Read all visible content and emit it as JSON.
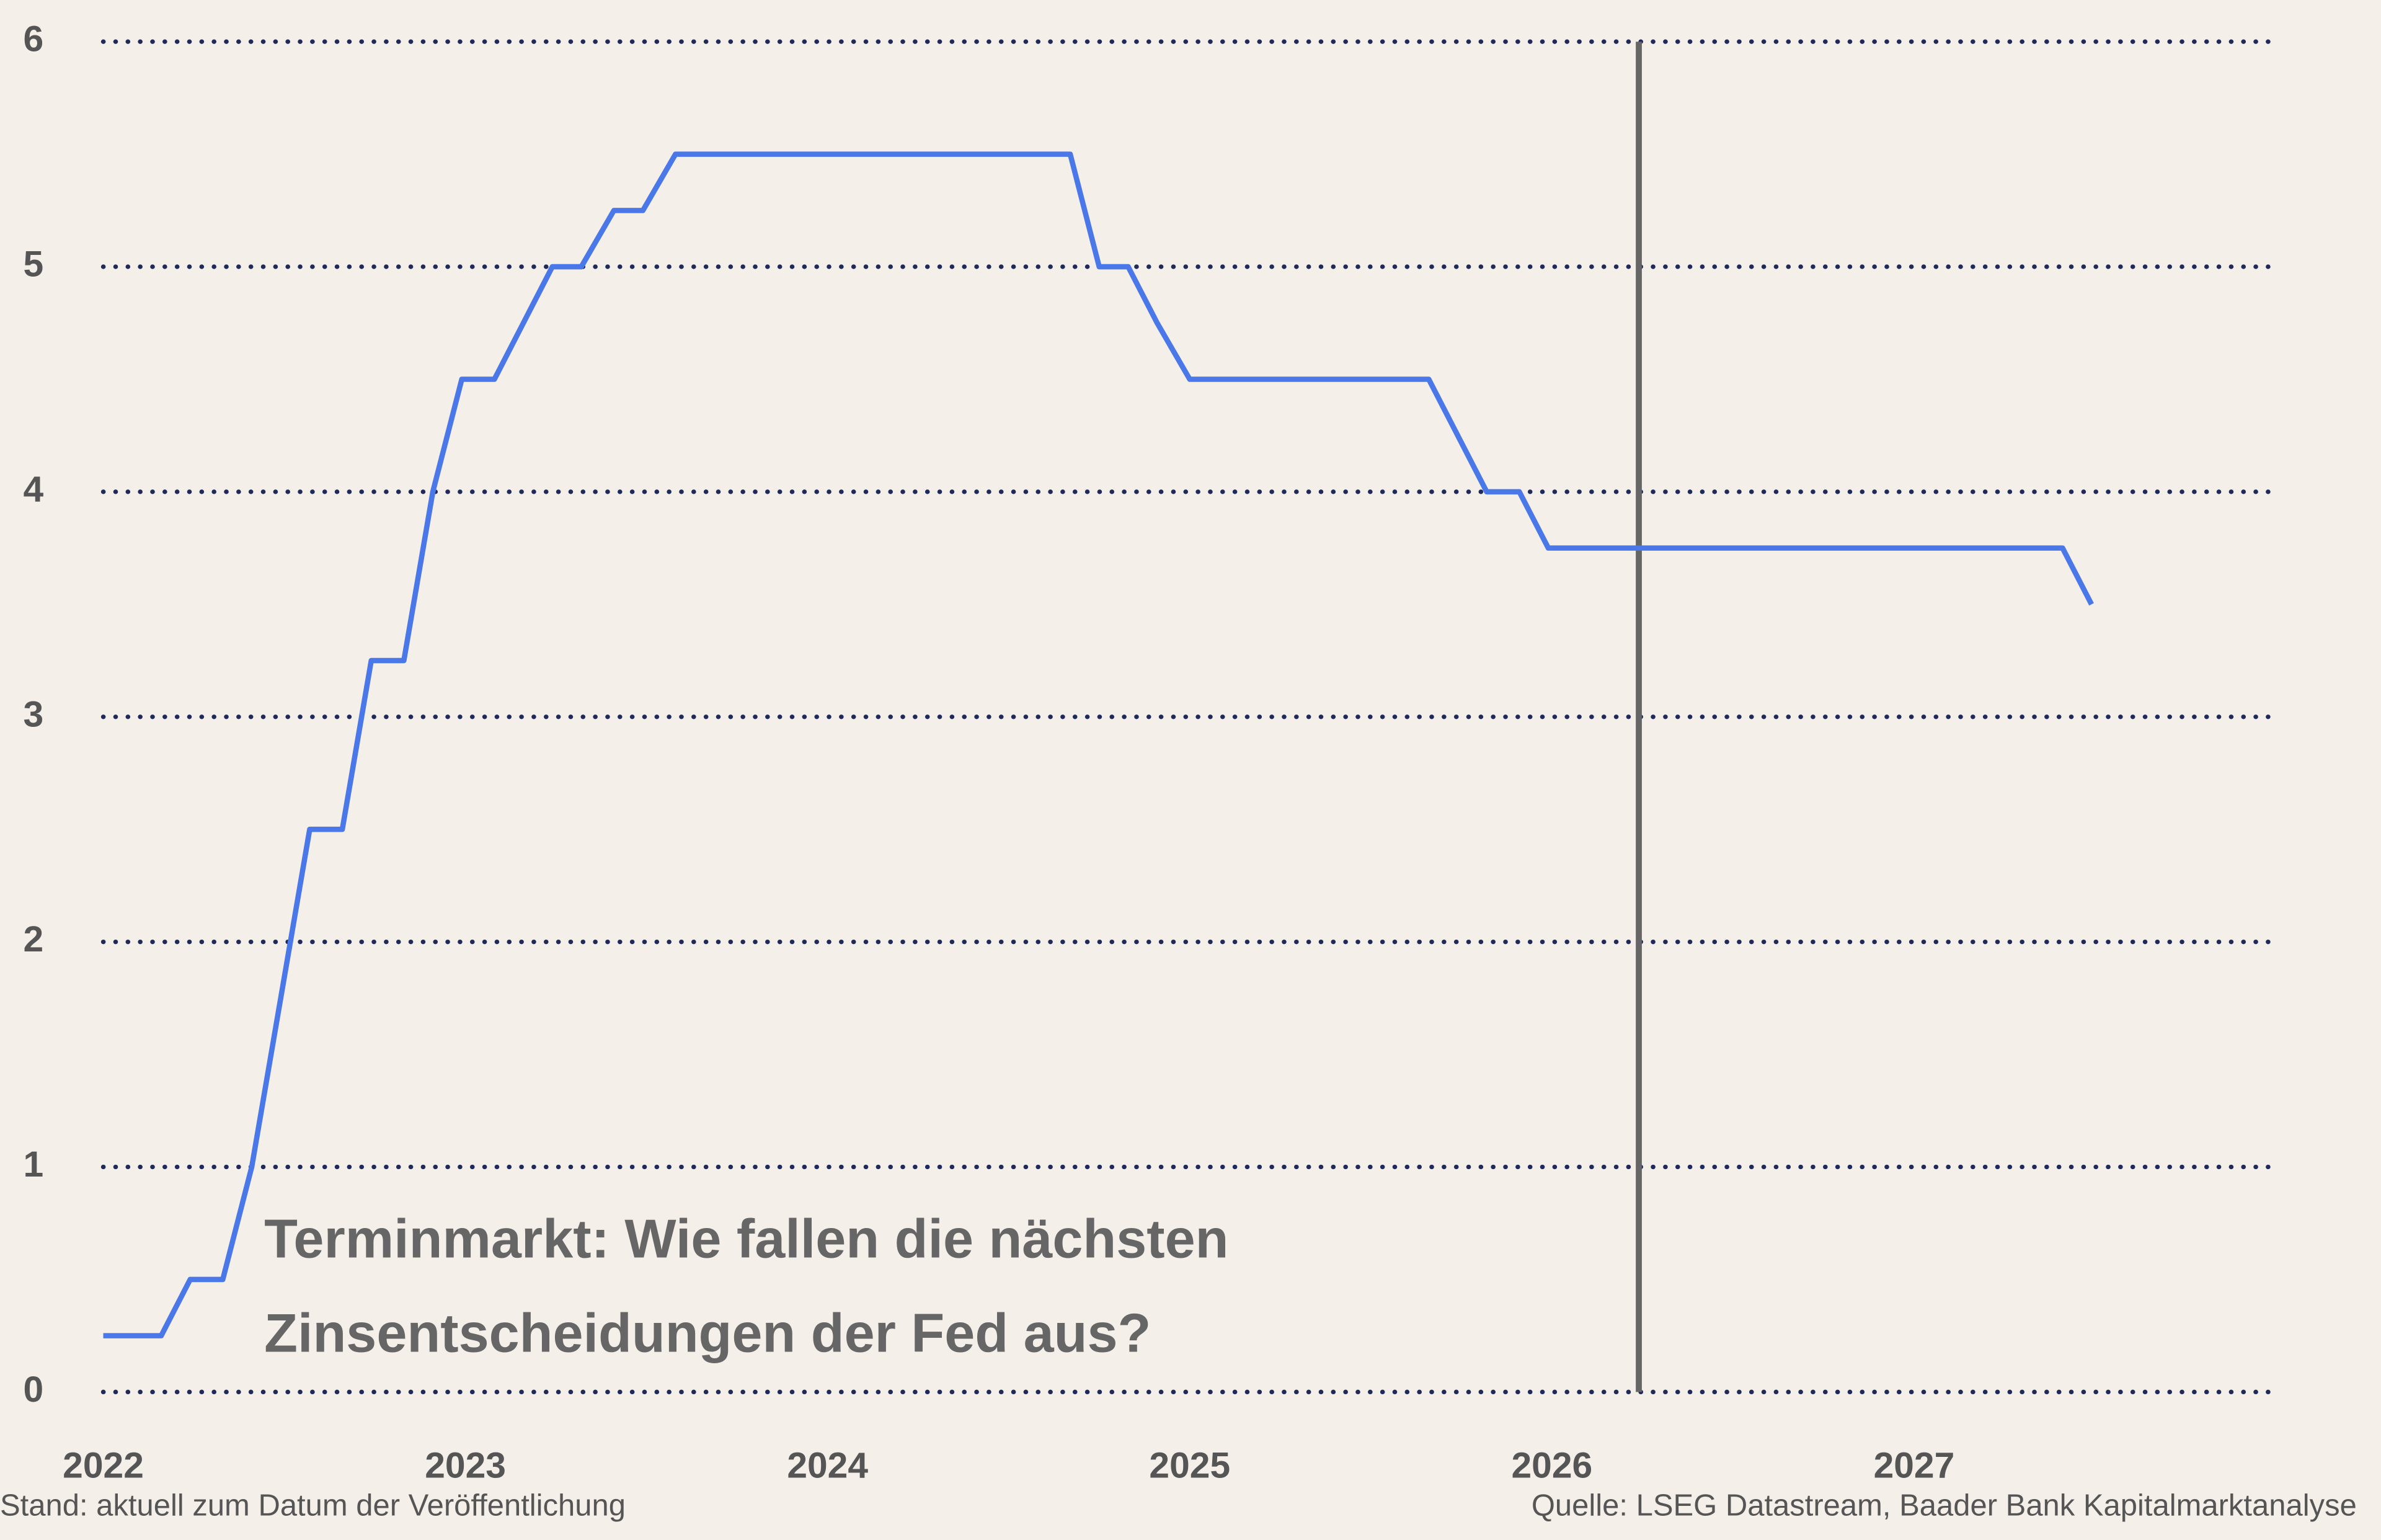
{
  "chart_data": {
    "type": "line",
    "title_lines": [
      "Terminmarkt: Wie fallen die nächsten",
      "Zinsentscheidungen der Fed aus?"
    ],
    "x": [
      2022.0,
      2022.16,
      2022.24,
      2022.33,
      2022.41,
      2022.57,
      2022.66,
      2022.74,
      2022.83,
      2022.91,
      2022.99,
      2023.08,
      2023.16,
      2023.24,
      2023.32,
      2023.41,
      2023.49,
      2023.58,
      2024.67,
      2024.75,
      2024.83,
      2024.91,
      2025.0,
      2025.66,
      2025.74,
      2025.82,
      2025.91,
      2025.99,
      2027.41,
      2027.49
    ],
    "series": [
      {
        "color": "#4a78e8",
        "values": [
          0.25,
          0.25,
          0.5,
          0.5,
          1.0,
          2.5,
          2.5,
          3.25,
          3.25,
          4.0,
          4.5,
          4.5,
          4.75,
          5.0,
          5.0,
          5.25,
          5.25,
          5.5,
          5.5,
          5.0,
          5.0,
          4.75,
          4.5,
          4.5,
          4.25,
          4.0,
          4.0,
          3.75,
          3.75,
          3.5
        ]
      }
    ],
    "marker_x": 2026.24,
    "marker_color": "#666666",
    "xlim": [
      2022,
      2028
    ],
    "xticks": [
      2022,
      2023,
      2024,
      2025,
      2026,
      2027
    ],
    "ylim": [
      0,
      6
    ],
    "yticks": [
      0,
      1,
      2,
      3,
      4,
      5,
      6
    ],
    "grid": true,
    "grid_color": "#1f2a5a",
    "note": "Stand: aktuell zum Datum der Veröffentlichung",
    "source": "Quelle: LSEG Datastream, Baader Bank Kapitalmarktanalyse"
  }
}
